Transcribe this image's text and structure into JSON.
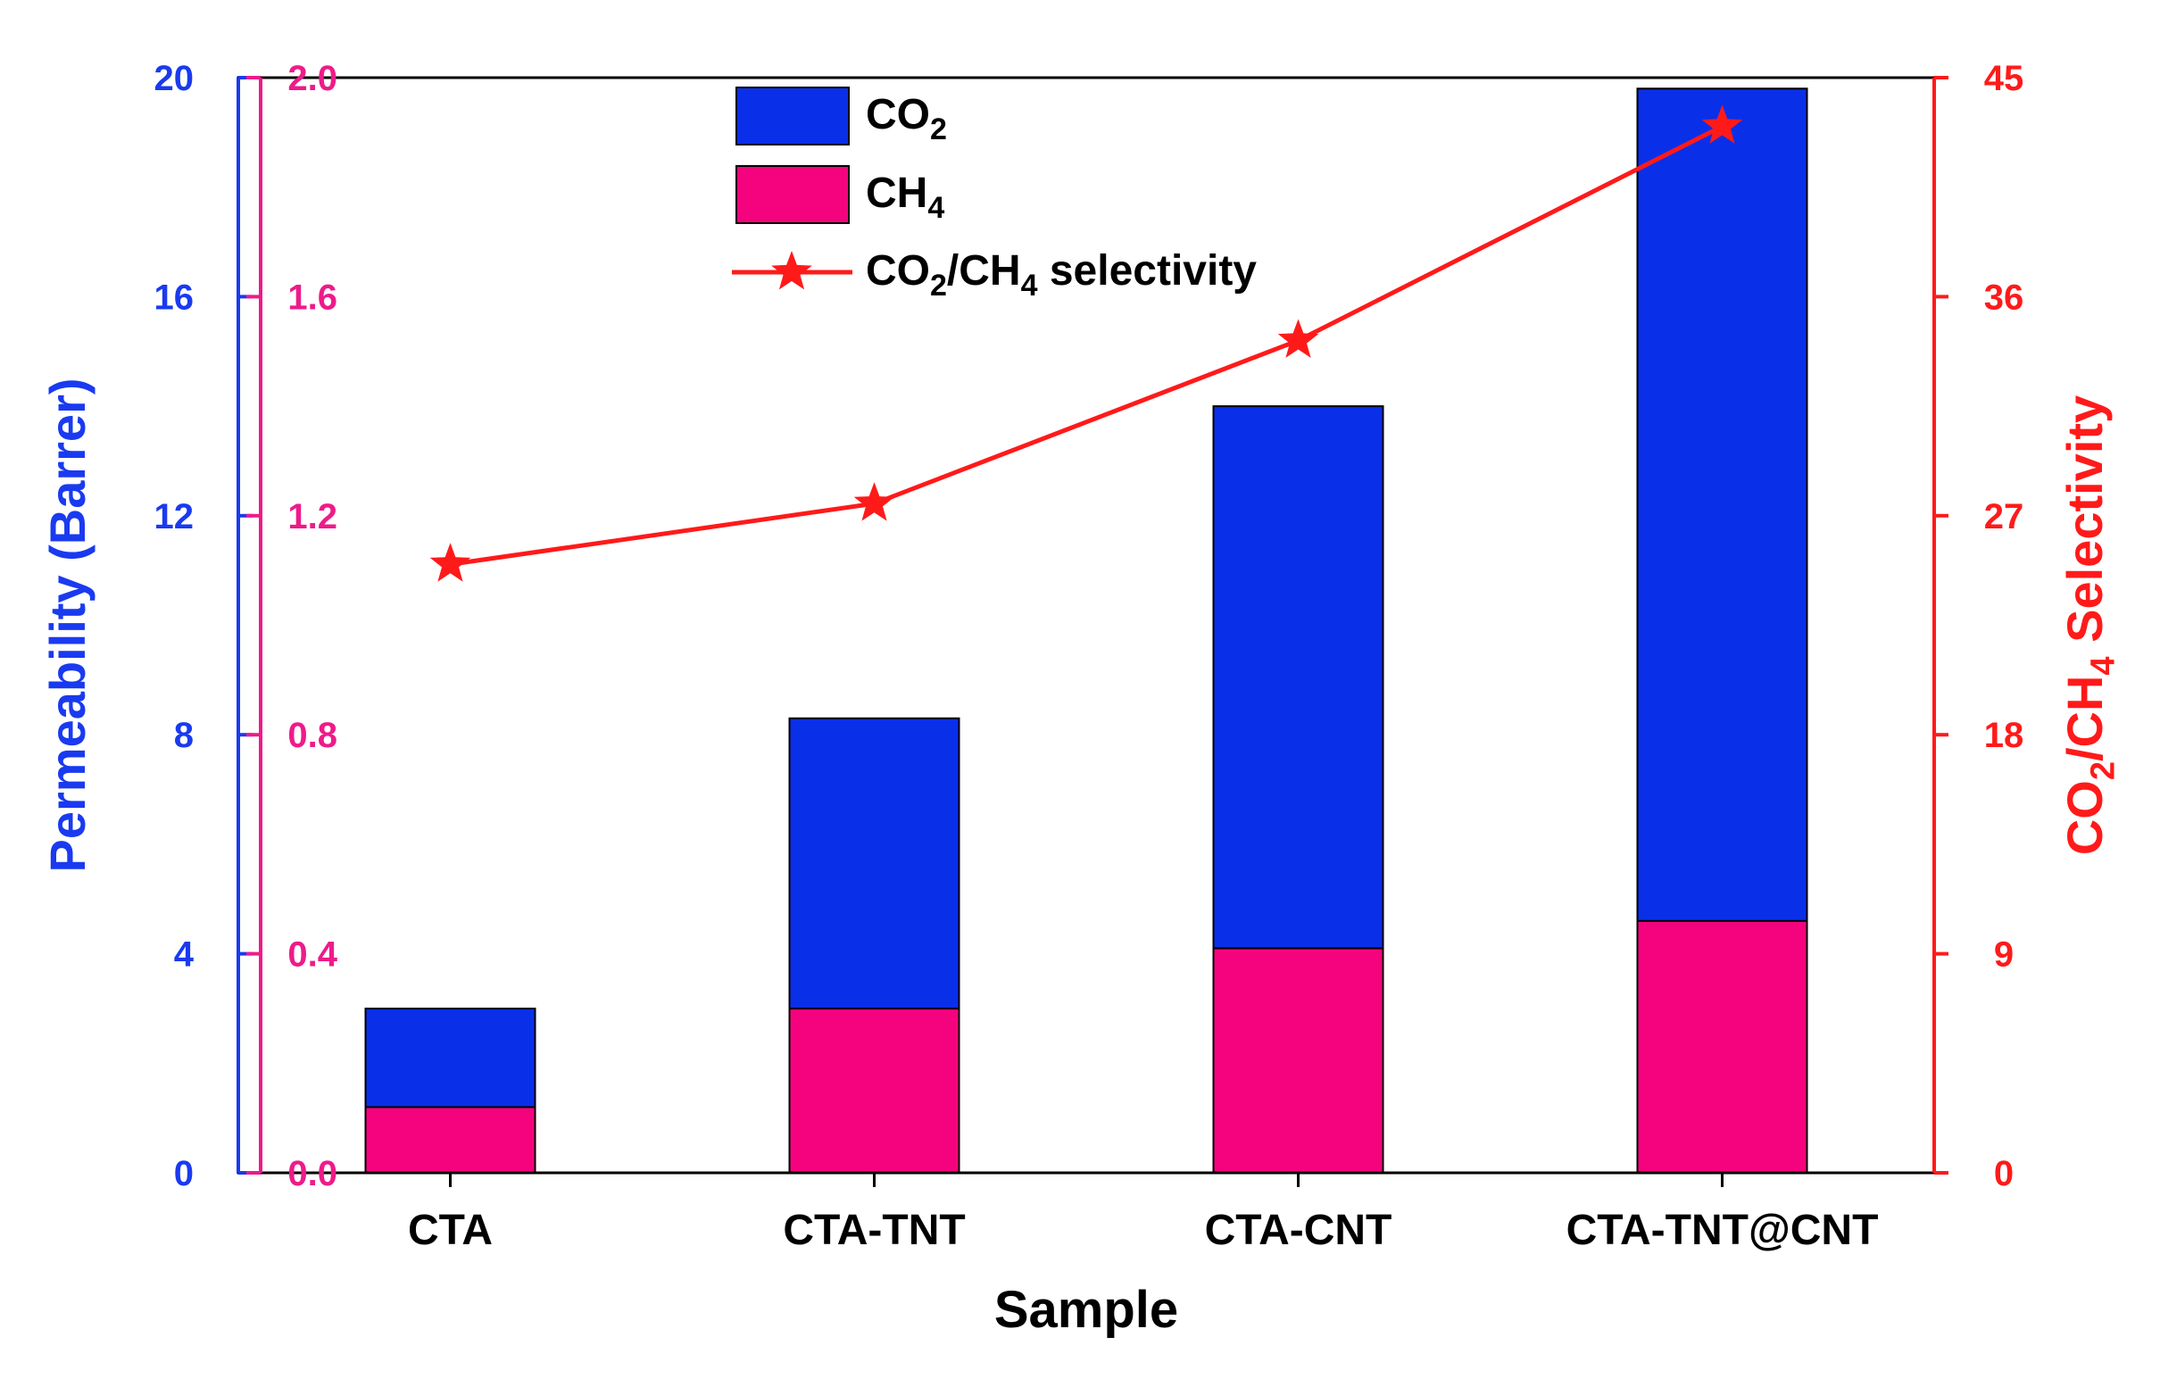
{
  "colors": {
    "co2": "#0a2fe8",
    "ch4": "#f5037e",
    "selectivity": "#ff1a1a",
    "left_axis": "#1a3af0",
    "left_inner_axis": "#ee1b8a",
    "right_axis": "#ff1a1a",
    "frame": "#000000"
  },
  "chart_data": {
    "type": "bar",
    "stacked": false,
    "note": "Blue bars = CO2 permeability (outer left axis, Barrer); pink bars = CH4 permeability (inner left axis, Barrer) overlaid; red line = CO2/CH4 selectivity (right axis)",
    "categories": [
      "CTA",
      "CTA-TNT",
      "CTA-CNT",
      "CTA-TNT@CNT"
    ],
    "series": [
      {
        "name": "CO2",
        "name_main": "CO",
        "name_sub": "2",
        "axis": "left_outer",
        "type": "bar",
        "values": [
          3.0,
          8.3,
          14.0,
          19.8
        ]
      },
      {
        "name": "CH4",
        "name_main": "CH",
        "name_sub": "4",
        "axis": "left_inner",
        "type": "bar",
        "values": [
          0.12,
          0.3,
          0.41,
          0.46
        ]
      },
      {
        "name": "CO2/CH4 selectivity",
        "axis": "right",
        "type": "line",
        "marker": "star",
        "values": [
          25.0,
          27.5,
          34.2,
          43.0
        ]
      }
    ],
    "axes": {
      "left_outer": {
        "ylim": [
          0,
          20
        ],
        "ticks": [
          "0",
          "4",
          "8",
          "12",
          "16",
          "20"
        ]
      },
      "left_inner": {
        "ylim": [
          0,
          2.0
        ],
        "ticks": [
          "0.0",
          "0.4",
          "0.8",
          "1.2",
          "1.6",
          "2.0"
        ]
      },
      "right": {
        "ylim": [
          0,
          45
        ],
        "ticks": [
          "0",
          "9",
          "18",
          "27",
          "36",
          "45"
        ]
      }
    },
    "xlabel": "Sample",
    "ylabel": "Permeability (Barrer)",
    "y2label_parts": [
      "CO",
      "2",
      "/CH",
      "4",
      " Selectivity"
    ],
    "legend": {
      "position": "top-center",
      "entries": [
        {
          "parts": [
            "CO",
            "2"
          ]
        },
        {
          "parts": [
            "CH",
            "4"
          ]
        },
        {
          "parts": [
            "CO",
            "2",
            "/CH",
            "4",
            " selectivity"
          ]
        }
      ]
    }
  }
}
